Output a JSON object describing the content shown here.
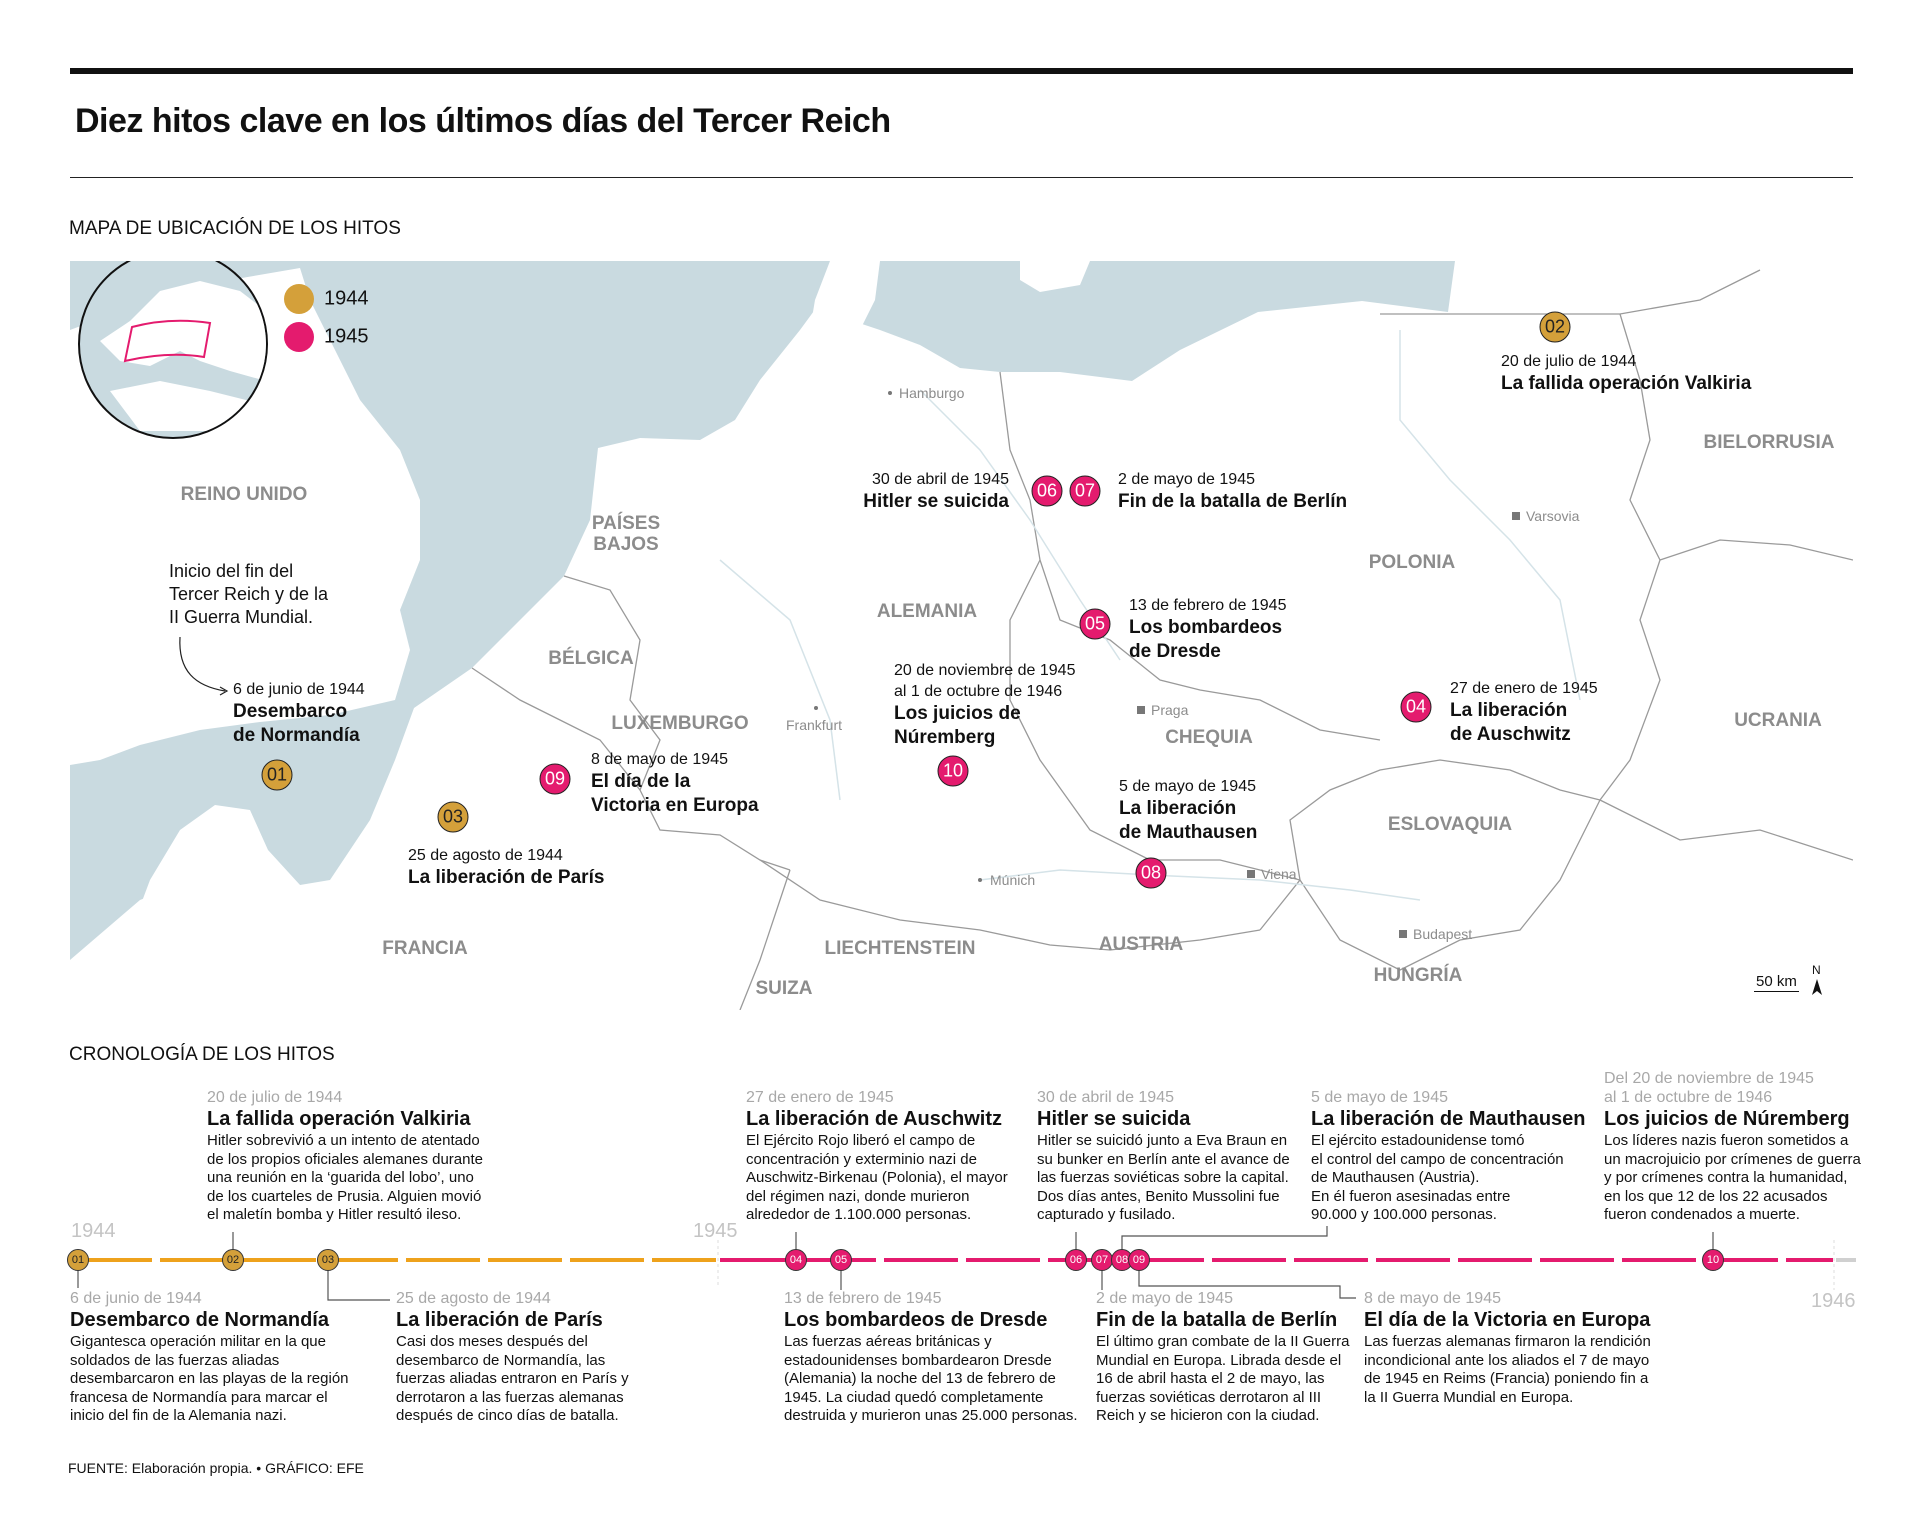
{
  "header": {
    "title": "Diez hitos clave en los últimos días del Tercer Reich"
  },
  "map": {
    "section_title": "MAPA DE UBICACIÓN DE LOS HITOS",
    "colors": {
      "sea": "#c9dae0",
      "land": "#ffffff",
      "border": "#9a9a9a",
      "y1944": "#d4a03a",
      "y1945": "#e41b6e",
      "locator": "#e41b6e"
    },
    "legend": [
      {
        "label": "1944",
        "color": "#d4a03a"
      },
      {
        "label": "1945",
        "color": "#e41b6e"
      }
    ],
    "countries": [
      "REINO UNIDO",
      "PAÍSES",
      "BAJOS",
      "BÉLGICA",
      "LUXEMBURGO",
      "ALEMANIA",
      "FRANCIA",
      "LIECHTENSTEIN",
      "SUIZA",
      "AUSTRIA",
      "CHEQUIA",
      "POLONIA",
      "ESLOVAQUIA",
      "HUNGRÍA",
      "UCRANIA",
      "BIELORRUSIA"
    ],
    "cities": [
      "Hamburgo",
      "Varsovia",
      "Praga",
      "Frankfurt",
      "Múnich",
      "Viena",
      "Budapest"
    ],
    "annotation": [
      "Inicio del fin del",
      "Tercer Reich y de la",
      "II Guerra Mundial."
    ],
    "scale": "50 km",
    "north": "N",
    "events": [
      {
        "id": "01",
        "year": "1944",
        "date": [
          "6 de junio de 1944"
        ],
        "title": [
          "Desembarco",
          "de Normandía"
        ]
      },
      {
        "id": "02",
        "year": "1944",
        "date": [
          "20 de julio de 1944"
        ],
        "title": [
          "La fallida operación Valkiria"
        ]
      },
      {
        "id": "03",
        "year": "1944",
        "date": [
          "25 de agosto de 1944"
        ],
        "title": [
          "La liberación de París"
        ]
      },
      {
        "id": "04",
        "year": "1945",
        "date": [
          "27 de enero de 1945"
        ],
        "title": [
          "La liberación",
          "de Auschwitz"
        ]
      },
      {
        "id": "05",
        "year": "1945",
        "date": [
          "13 de febrero de 1945"
        ],
        "title": [
          "Los bombardeos",
          "de Dresde"
        ]
      },
      {
        "id": "06",
        "year": "1945",
        "date": [
          "30 de abril de 1945"
        ],
        "title": [
          "Hitler se suicida"
        ]
      },
      {
        "id": "07",
        "year": "1945",
        "date": [
          "2 de mayo de 1945"
        ],
        "title": [
          "Fin de la batalla de Berlín"
        ]
      },
      {
        "id": "08",
        "year": "1945",
        "date": [
          "5 de mayo de 1945"
        ],
        "title": [
          "La liberación",
          "de Mauthausen"
        ]
      },
      {
        "id": "09",
        "year": "1945",
        "date": [
          "8 de mayo de 1945"
        ],
        "title": [
          "El día de la",
          "Victoria en Europa"
        ]
      },
      {
        "id": "10",
        "year": "1945",
        "date": [
          "20 de noviembre de 1945",
          "al 1 de octubre de 1946"
        ],
        "title": [
          "Los juicios de",
          "Núremberg"
        ]
      }
    ]
  },
  "timeline": {
    "section_title": "CRONOLOGÍA DE LOS HITOS",
    "years": [
      "1944",
      "1945",
      "1946"
    ],
    "colors": {
      "y1944": "#eea21c",
      "y1945": "#e41b6e",
      "after": "#d0d0d0"
    },
    "events": [
      {
        "id": "01",
        "date": [
          "6 de junio de 1944"
        ],
        "title": "Desembarco de Normandía",
        "body": [
          "Gigantesca operación militar en la que",
          "soldados de las fuerzas aliadas",
          "desembarcaron en las playas de la región",
          "francesa de Normandía para marcar el",
          "inicio del fin de la Alemania nazi."
        ]
      },
      {
        "id": "02",
        "date": [
          "20 de julio de 1944"
        ],
        "title": "La fallida operación Valkiria",
        "body": [
          "Hitler sobrevivió a un intento de atentado",
          "de los propios oficiales alemanes durante",
          "una reunión en la ‘guarida del lobo’, uno",
          "de los cuarteles de Prusia. Alguien movió",
          "el maletín bomba y Hitler resultó ileso."
        ]
      },
      {
        "id": "03",
        "date": [
          "25 de agosto de 1944"
        ],
        "title": "La liberación de París",
        "body": [
          "Casi dos meses después del",
          "desembarco de Normandía, las",
          "fuerzas aliadas entraron en París y",
          "derrotaron a las fuerzas alemanas",
          "después de cinco días de batalla."
        ]
      },
      {
        "id": "04",
        "date": [
          "27 de enero de 1945"
        ],
        "title": "La liberación de Auschwitz",
        "body": [
          "El Ejército Rojo liberó el campo de",
          "concentración y exterminio nazi de",
          "Auschwitz-Birkenau (Polonia), el mayor",
          "del régimen nazi, donde murieron",
          "alrededor de 1.100.000 personas."
        ]
      },
      {
        "id": "05",
        "date": [
          "13 de febrero de 1945"
        ],
        "title": "Los bombardeos de Dresde",
        "body": [
          "Las fuerzas aéreas británicas y",
          "estadounidenses bombardearon Dresde",
          "(Alemania) la noche del 13 de febrero de",
          "1945. La ciudad quedó completamente",
          "destruida y murieron unas 25.000 personas."
        ]
      },
      {
        "id": "06",
        "date": [
          "30 de abril de 1945"
        ],
        "title": "Hitler se suicida",
        "body": [
          "Hitler se suicidó junto a Eva Braun en",
          "su bunker en Berlín ante el avance de",
          "las fuerzas soviéticas sobre la capital.",
          "Dos días antes, Benito Mussolini fue",
          "capturado y fusilado."
        ]
      },
      {
        "id": "07",
        "date": [
          "2 de mayo de 1945"
        ],
        "title": "Fin de la batalla de Berlín",
        "body": [
          "El último gran combate de la II Guerra",
          "Mundial en Europa. Librada desde el",
          "16 de abril hasta el 2 de mayo, las",
          "fuerzas soviéticas derrotaron al III",
          "Reich y se hicieron con la ciudad."
        ]
      },
      {
        "id": "08",
        "date": [
          "5 de mayo de 1945"
        ],
        "title": "La liberación de Mauthausen",
        "body": [
          "El ejército estadounidense tomó",
          "el control del campo de concentración",
          "de Mauthausen (Austria).",
          "En él fueron asesinadas entre",
          "90.000 y 100.000 personas."
        ]
      },
      {
        "id": "09",
        "date": [
          "8 de mayo de 1945"
        ],
        "title": "El día de la Victoria en Europa",
        "body": [
          "Las fuerzas alemanas firmaron la rendición",
          "incondicional ante los aliados el 7 de mayo",
          "de 1945 en Reims (Francia) poniendo fin a",
          "la II Guerra Mundial en Europa."
        ]
      },
      {
        "id": "10",
        "date": [
          "Del 20 de noviembre de 1945",
          "al 1 de octubre de 1946"
        ],
        "title": "Los juicios de Núremberg",
        "body": [
          "Los líderes nazis fueron sometidos a",
          "un macrojuicio por crímenes de guerra",
          "y por crímenes contra la humanidad,",
          "en los que 12 de los 22 acusados",
          "fueron condenados a muerte."
        ]
      }
    ]
  },
  "footer": {
    "source": "FUENTE: Elaboración propia. • GRÁFICO: EFE"
  }
}
